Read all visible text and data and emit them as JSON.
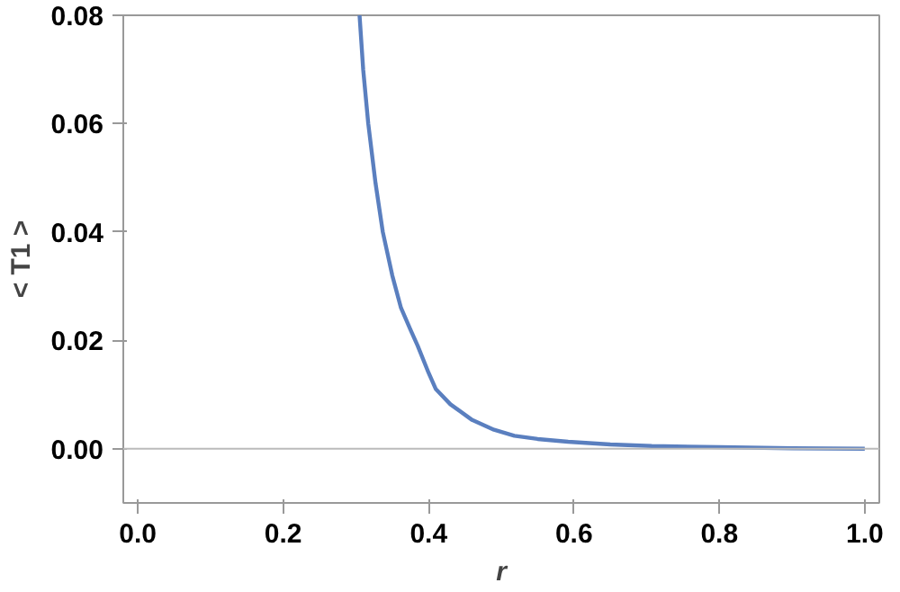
{
  "chart_data": {
    "type": "line",
    "xlabel": "r",
    "ylabel": "< T1 >",
    "xlim": [
      -0.02,
      1.02
    ],
    "ylim": [
      -0.01,
      0.08
    ],
    "xticks": [
      {
        "value": 0,
        "label": "0.0"
      },
      0.2,
      0.4,
      0.6,
      0.8,
      {
        "value": 1,
        "label": "1.0"
      }
    ],
    "yticks": [
      {
        "value": 0,
        "label": "0.00"
      },
      {
        "value": 0.02,
        "label": "0.02"
      },
      {
        "value": 0.04,
        "label": "0.04"
      },
      {
        "value": 0.06,
        "label": "0.06"
      },
      {
        "value": 0.08,
        "label": "0.08"
      }
    ],
    "grid": false,
    "line_style": "solid",
    "marker": "none",
    "ref_lines": [
      {
        "axis": "y",
        "value": 0,
        "color": "#bbbbbb"
      }
    ],
    "series": [
      {
        "color": "#5a7fbf",
        "x": [
          0.305,
          0.31,
          0.317,
          0.327,
          0.337,
          0.35,
          0.362,
          0.375,
          0.385,
          0.4,
          0.41,
          0.43,
          0.46,
          0.49,
          0.518,
          0.55,
          0.592,
          0.65,
          0.707,
          0.8,
          0.9,
          1.0
        ],
        "values": [
          0.08,
          0.07,
          0.06,
          0.049,
          0.04,
          0.032,
          0.026,
          0.022,
          0.019,
          0.014,
          0.011,
          0.0082,
          0.0053,
          0.0035,
          0.0024,
          0.0018,
          0.0013,
          0.0008,
          0.0005,
          0.0003,
          0.0001,
          0.0
        ]
      }
    ]
  }
}
